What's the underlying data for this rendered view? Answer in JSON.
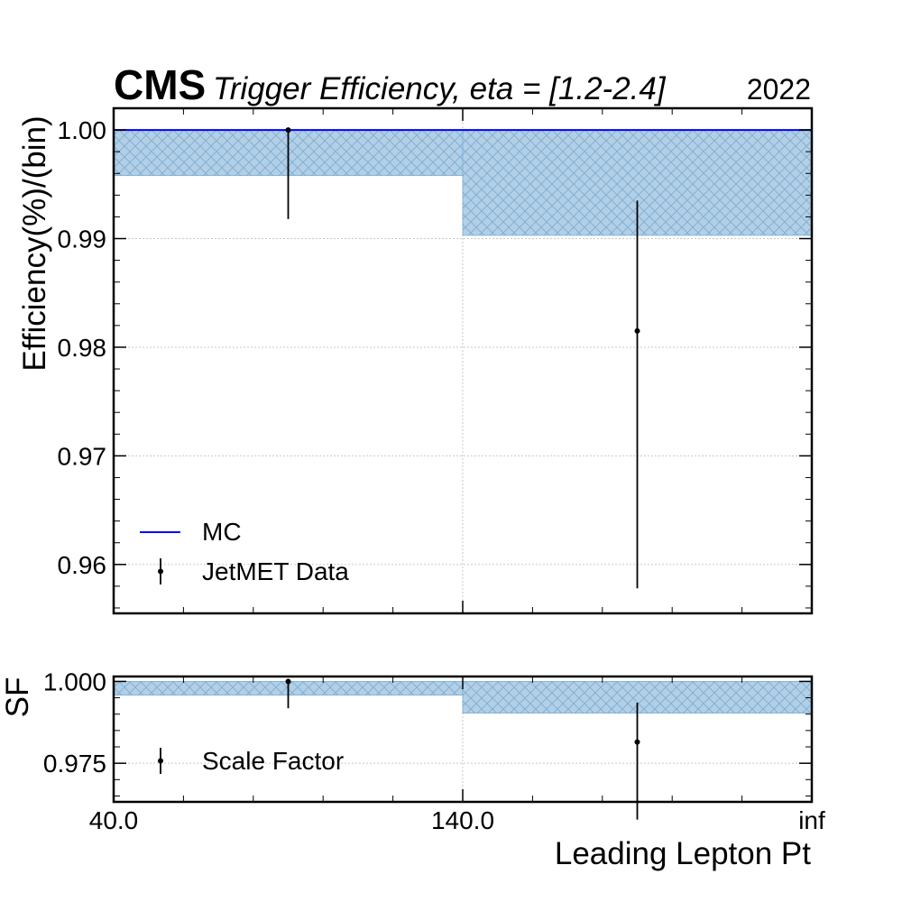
{
  "header": {
    "experiment": "CMS",
    "title": "Trigger Efficiency, eta = [1.2-2.4]",
    "year": "2022"
  },
  "colors": {
    "mc_line": "#0000ff",
    "band_fill": "#b3cfe6",
    "band_hatch": "#7aaed3",
    "data": "#000000",
    "grid": "#c8c8c8"
  },
  "chart_data": [
    {
      "type": "line",
      "panel": "main",
      "xlabel": "",
      "ylabel": "Efficiency(%)/(bin)",
      "bin_edges": [
        "40.0",
        "140.0",
        "inf"
      ],
      "ylim": [
        0.9555,
        1.002
      ],
      "yticks": [
        "1.00",
        "0.99",
        "0.98",
        "0.97",
        "0.96"
      ],
      "grid": true,
      "legend_position": "bottom-left",
      "series": [
        {
          "name": "MC",
          "kind": "step",
          "values": [
            1.0,
            1.0
          ],
          "band_low": [
            0.9958,
            0.9903
          ],
          "band_high": [
            1.0,
            1.0
          ]
        },
        {
          "name": "JetMET Data",
          "kind": "errorbar",
          "values": [
            1.0,
            0.9815
          ],
          "err_low": [
            0.9918,
            0.9578
          ],
          "err_high": [
            1.0,
            0.9935
          ]
        }
      ]
    },
    {
      "type": "line",
      "panel": "ratio",
      "xlabel": "Leading Lepton Pt",
      "ylabel": "SF",
      "bin_edges": [
        "40.0",
        "140.0",
        "inf"
      ],
      "ylim": [
        0.9632,
        1.0015
      ],
      "yticks": [
        "1.000",
        "0.975"
      ],
      "grid": true,
      "legend_position": "bottom-left",
      "series": [
        {
          "name": "",
          "kind": "band",
          "band_low": [
            0.9958,
            0.9903
          ],
          "band_high": [
            1.0,
            1.0
          ]
        },
        {
          "name": "Scale Factor",
          "kind": "errorbar",
          "values": [
            1.0,
            0.9815
          ],
          "err_low": [
            0.9918,
            0.9578
          ],
          "err_high": [
            1.0,
            0.9935
          ]
        }
      ]
    }
  ]
}
